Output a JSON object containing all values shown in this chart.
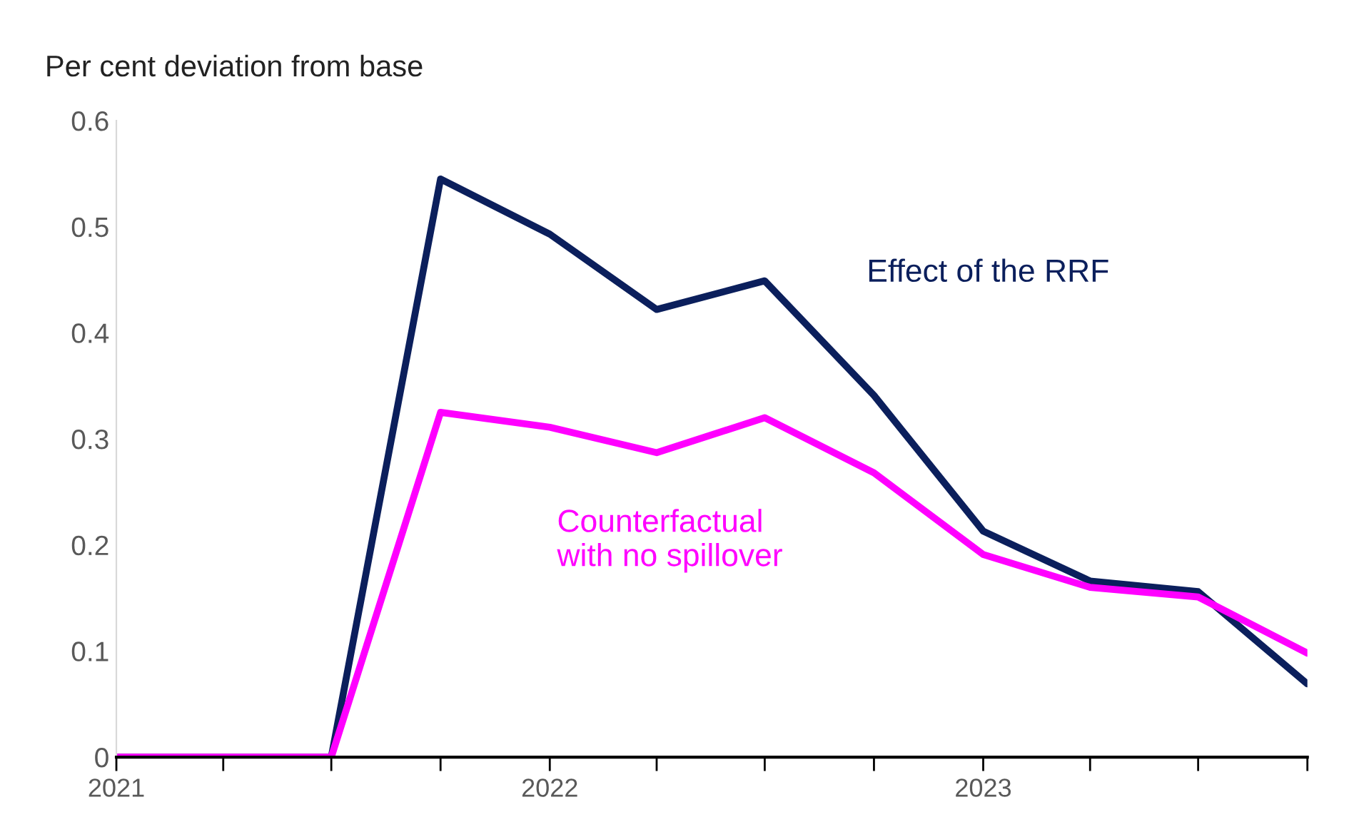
{
  "chart_data": {
    "type": "line",
    "ylabel": "Per cent deviation from base",
    "x": [
      "2021-01",
      "2021-04",
      "2021-07",
      "2021-10",
      "2022-01",
      "2022-04",
      "2022-07",
      "2022-10",
      "2023-01",
      "2023-04",
      "2023-07",
      "2023-10"
    ],
    "series": [
      {
        "name": "Effect of the RRF",
        "color": "#0b1f5c",
        "values": [
          0,
          0,
          0,
          0.545,
          0.493,
          0.422,
          0.449,
          0.341,
          0.213,
          0.166,
          0.156,
          0.069
        ]
      },
      {
        "name": "Counterfactual with no spillover",
        "color": "#ff00ff",
        "values": [
          0,
          0,
          0,
          0.325,
          0.311,
          0.287,
          0.32,
          0.268,
          0.191,
          0.16,
          0.151,
          0.098
        ]
      }
    ],
    "xlim": [
      "2021-01",
      "2023-10"
    ],
    "xticks": [
      {
        "value": "2021-01",
        "label": "2021"
      },
      {
        "value": "2021-04",
        "label": null
      },
      {
        "value": "2021-07",
        "label": null
      },
      {
        "value": "2021-10",
        "label": null
      },
      {
        "value": "2022-01",
        "label": "2022"
      },
      {
        "value": "2022-04",
        "label": null
      },
      {
        "value": "2022-07",
        "label": null
      },
      {
        "value": "2022-10",
        "label": null
      },
      {
        "value": "2023-01",
        "label": "2023"
      },
      {
        "value": "2023-04",
        "label": null
      },
      {
        "value": "2023-07",
        "label": null
      },
      {
        "value": "2023-10",
        "label": null
      }
    ],
    "ylim": [
      0,
      0.6
    ],
    "yticks": [
      0,
      0.1,
      0.2,
      0.3,
      0.4,
      0.5,
      0.6
    ],
    "grid": false,
    "legend": false,
    "marker": "none",
    "line_style": "solid"
  }
}
